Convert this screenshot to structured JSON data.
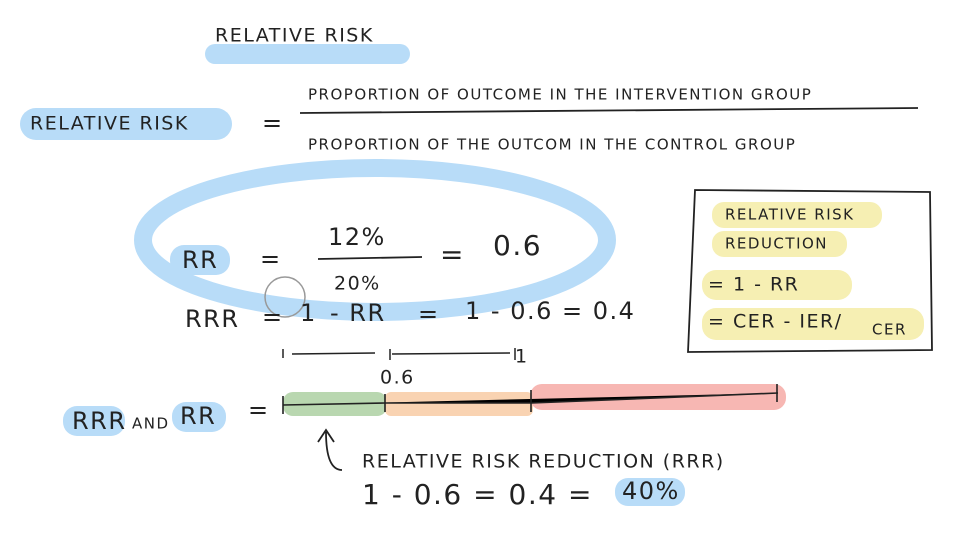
{
  "title": "RELATIVE RISK",
  "definition": {
    "term": "RELATIVE RISK",
    "equals": "=",
    "numerator": "PROPORTION OF OUTCOME IN THE INTERVENTION GROUP",
    "denominator": "PROPORTION OF THE OUTCOM IN THE CONTROL GROUP"
  },
  "rr_formula": {
    "term": "RR",
    "equals": "=",
    "numerator": "12%",
    "denominator": "20%",
    "equals_result": "=",
    "result": "0.6"
  },
  "rrr_formula": {
    "term": "RRR",
    "equals": "=",
    "one": "1",
    "minus_rr": "- RR",
    "equals_2": "=",
    "calculation": "1 - 0.6 = 0.4"
  },
  "scale": {
    "labels": [
      "0.6",
      "1"
    ]
  },
  "comparison": {
    "left": "RRR",
    "and": "AND",
    "right": "RR",
    "equals": "="
  },
  "annotation": {
    "label": "RELATIVE RISK REDUCTION (RRR)",
    "calculation": "1 - 0.6 = 0.4 =",
    "result": "40%"
  },
  "box": {
    "title_lines": [
      "RELATIVE RISK",
      "REDUCTION"
    ],
    "formulas": [
      "= 1 - RR",
      "= CER - IER/"
    ],
    "subscript": "CER"
  }
}
